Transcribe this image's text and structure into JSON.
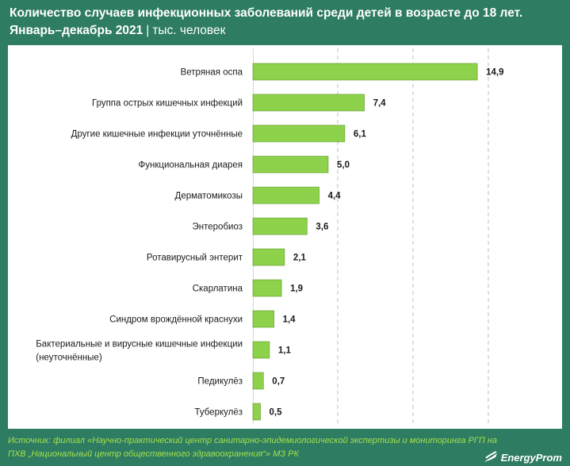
{
  "header": {
    "title_line1": "Количество случаев инфекционных заболеваний среди детей в возрасте до 18 лет.",
    "title_line2": "Январь–декабрь 2021",
    "separator": "|",
    "unit": "тыс. человек"
  },
  "footer": {
    "source_line1": "Источник: филиал «Научно-практический центр санитарно-эпидемиологической экспертизы и мониторинга РГП на",
    "source_line2": "ПХВ „Национальный центр общественного здравоохранения“» МЗ РК",
    "logo_text": "EnergyProm",
    "logo_icon": "energyprom-swoosh-icon"
  },
  "colors": {
    "background": "#2e7c62",
    "bar": "#8ed14a",
    "bar_edge": "#5f9a2a",
    "footer_text": "#a5e04a"
  },
  "chart_data": {
    "type": "bar",
    "orientation": "horizontal",
    "categories": [
      "Ветряная оспа",
      "Группа острых кишечных инфекций",
      "Другие кишечные инфекции уточнённые",
      "Функциональная диарея",
      "Дерматомикозы",
      "Энтеробиоз",
      "Ротавирусный энтерит",
      "Скарлатина",
      "Синдром врождённой краснухи",
      "Бактериальные и вирусные кишечные инфекции (неуточнённые)",
      "Педикулёз",
      "Туберкулёз"
    ],
    "values": [
      14.9,
      7.4,
      6.1,
      5.0,
      4.4,
      3.6,
      2.1,
      1.9,
      1.4,
      1.1,
      0.7,
      0.5
    ],
    "value_labels": [
      "14,9",
      "7,4",
      "6,1",
      "5,0",
      "4,4",
      "3,6",
      "2,1",
      "1,9",
      "1,4",
      "1,1",
      "0,7",
      "0,5"
    ],
    "xlim": [
      0,
      15
    ],
    "grid": true
  }
}
